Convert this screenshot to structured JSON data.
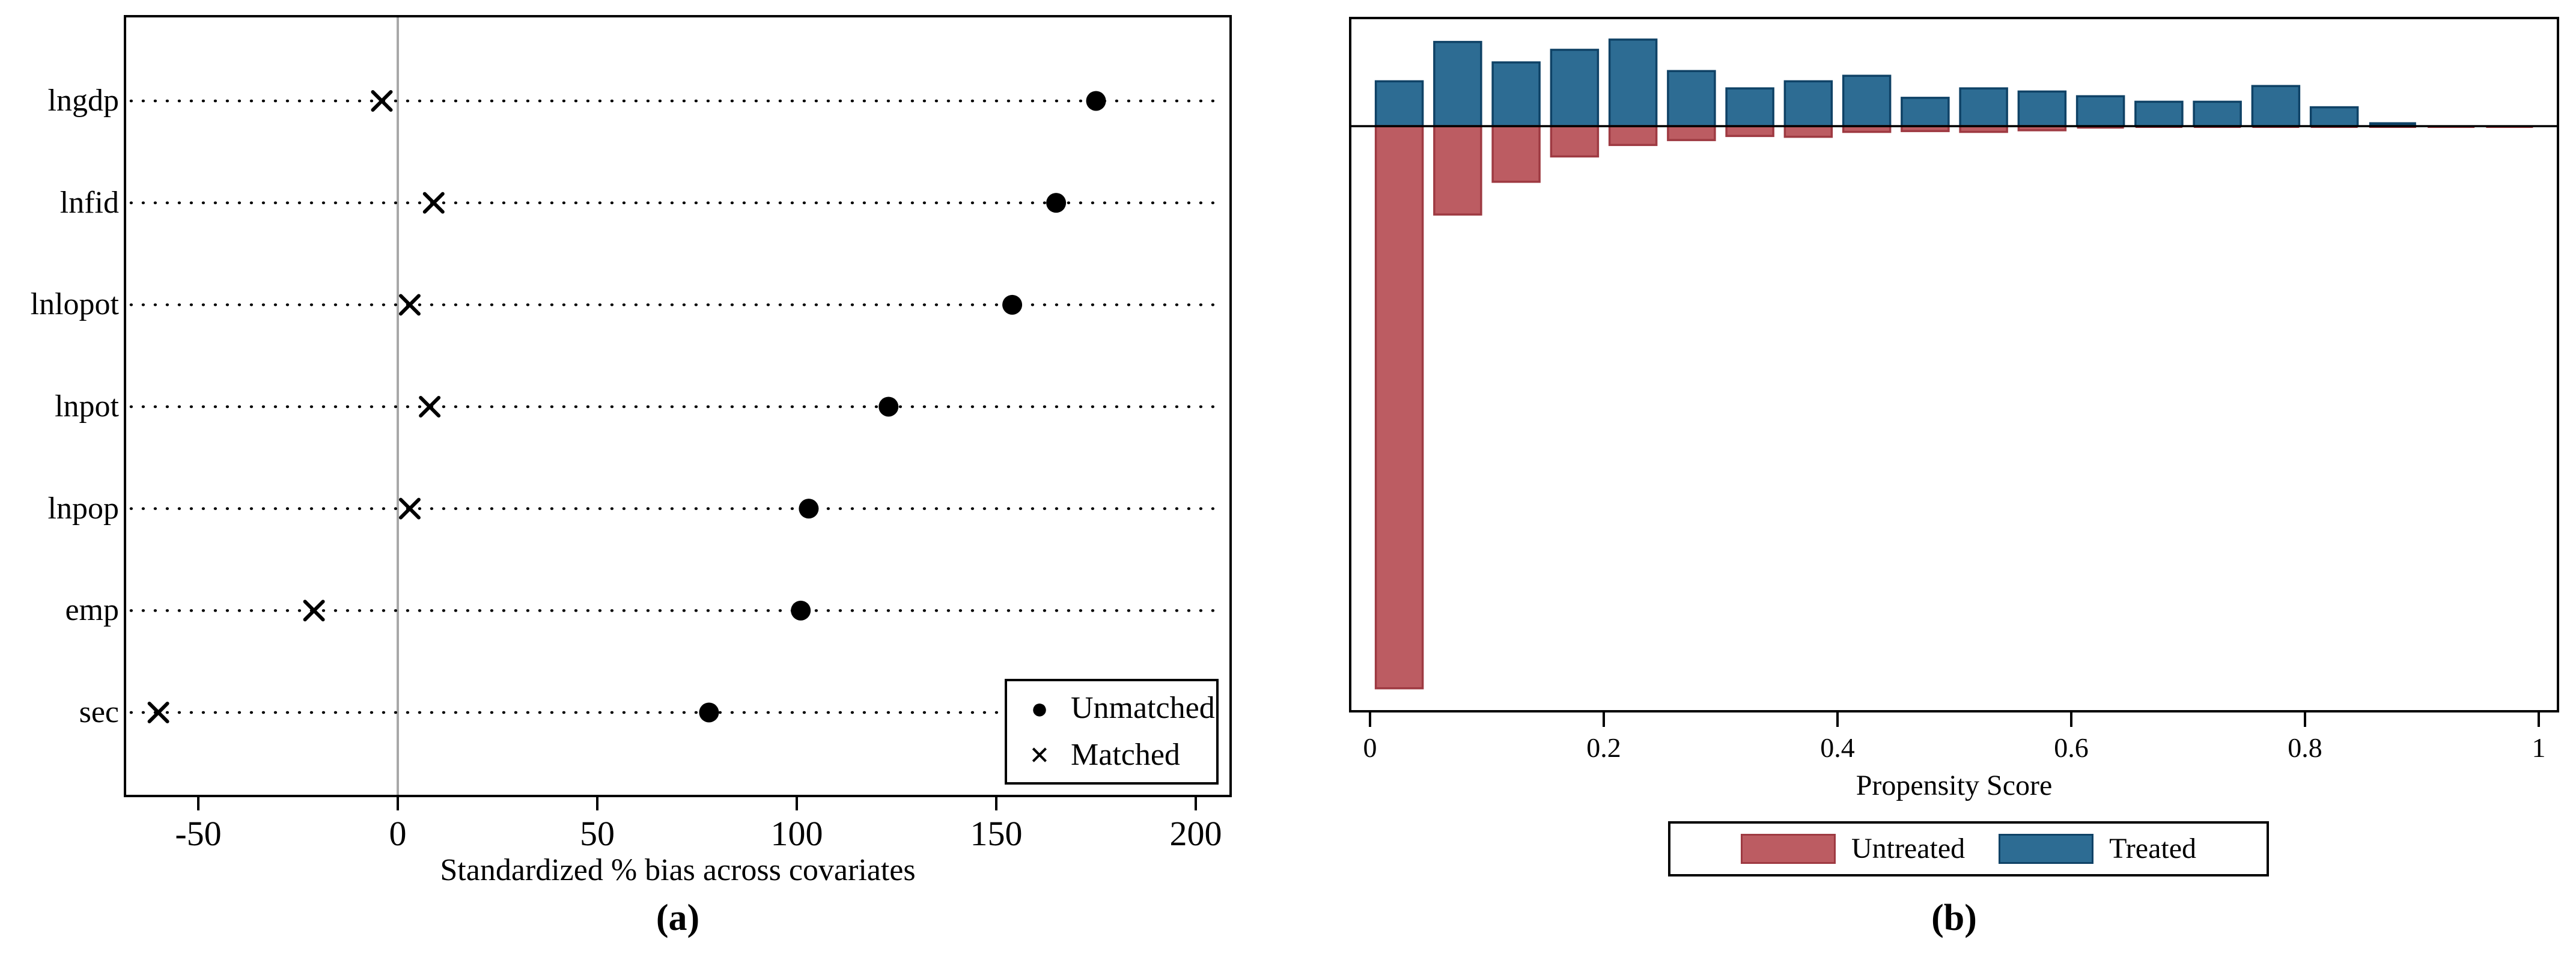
{
  "panel_a": {
    "caption": "(a)",
    "xlabel": "Standardized % bias across covariates",
    "covariates": [
      "lngdp",
      "lnfid",
      "lnlopot",
      "lnpot",
      "lnpop",
      "emp",
      "sec"
    ],
    "legend": [
      {
        "glyph": "●",
        "label": "Unmatched"
      },
      {
        "glyph": "×",
        "label": "Matched"
      }
    ]
  },
  "panel_b": {
    "caption": "(b)",
    "xlabel": "Propensity Score",
    "legend": [
      {
        "label": "Untreated",
        "fill": "#bc5c62",
        "stroke": "#9e3a42"
      },
      {
        "label": "Treated",
        "fill": "#2d6c93",
        "stroke": "#0f4266"
      }
    ]
  },
  "colors": {
    "marker": "#000000",
    "reference_line": "#a8a8a8",
    "treated_fill": "#2d6c93",
    "treated_stroke": "#0f4266",
    "untreated_fill": "#bc5c62",
    "untreated_stroke": "#9e3a42"
  },
  "chart_data": [
    {
      "type": "scatter",
      "panel": "a",
      "title": "",
      "xlabel": "Standardized % bias across covariates",
      "categories": [
        "lngdp",
        "lnfid",
        "lnlopot",
        "lnpot",
        "lnpop",
        "emp",
        "sec"
      ],
      "series": [
        {
          "name": "Unmatched",
          "marker": "circle",
          "values": [
            175,
            165,
            154,
            123,
            103,
            101,
            78
          ]
        },
        {
          "name": "Matched",
          "marker": "x",
          "values": [
            -4,
            9,
            3,
            8,
            3,
            -21,
            -60
          ]
        }
      ],
      "x_ticks": [
        -50,
        0,
        50,
        100,
        150,
        200
      ],
      "xlim": [
        -68,
        208
      ],
      "reference_line_x": 0,
      "grid": "dotted-horizontal-rows",
      "legend_position": "lower-right",
      "caption": "(a)"
    },
    {
      "type": "bar",
      "panel": "b",
      "subtype": "mirrored-histogram",
      "title": "",
      "xlabel": "Propensity Score",
      "bin_width": 0.05,
      "bin_centers": [
        0.025,
        0.075,
        0.125,
        0.175,
        0.225,
        0.275,
        0.325,
        0.375,
        0.425,
        0.475,
        0.525,
        0.575,
        0.625,
        0.675,
        0.725,
        0.775,
        0.825,
        0.875,
        0.925,
        0.975
      ],
      "series": [
        {
          "name": "Treated",
          "direction": "up",
          "values": [
            0.057,
            0.107,
            0.081,
            0.097,
            0.11,
            0.07,
            0.048,
            0.057,
            0.064,
            0.036,
            0.048,
            0.044,
            0.038,
            0.031,
            0.031,
            0.051,
            0.024,
            0.005,
            0,
            0
          ]
        },
        {
          "name": "Untreated",
          "direction": "down",
          "values": [
            0.687,
            0.108,
            0.068,
            0.037,
            0.023,
            0.017,
            0.012,
            0.013,
            0.007,
            0.006,
            0.007,
            0.005,
            0.003,
            0.0015,
            0.0015,
            0.0015,
            0.0007,
            0.0007,
            0.0007,
            0.0007
          ]
        }
      ],
      "values_unit": "share of group per bin (no y-axis labels shown)",
      "x_ticks": [
        0,
        0.2,
        0.4,
        0.6,
        0.8,
        1
      ],
      "xlim": [
        -0.016,
        1.015
      ],
      "legend_position": "below",
      "caption": "(b)"
    }
  ]
}
